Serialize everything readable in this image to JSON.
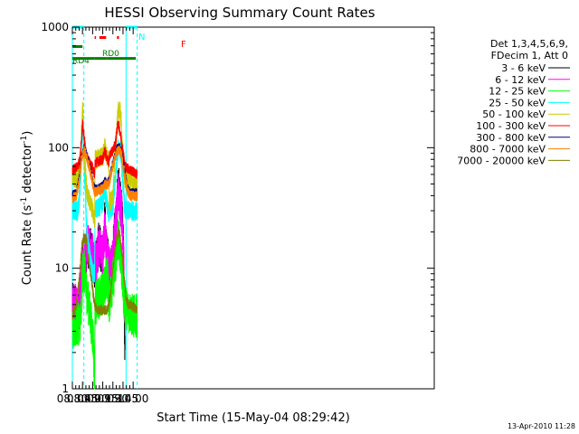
{
  "chart_data": {
    "type": "line",
    "title": "HESSI Observing Summary Count Rates",
    "xlabel": "Start Time (15-May-04 08:29:42)",
    "ylabel_main": "Count Rate (s",
    "ylabel_sup1": "-1",
    "ylabel_mid": " detector",
    "ylabel_sup2": "-1",
    "ylabel_end": ")",
    "yscale": "log",
    "xlim_min": [
      510,
      1046
    ],
    "ylim": [
      1,
      1000
    ],
    "xticks": [
      {
        "min": 510,
        "label": "08:30"
      },
      {
        "min": 525,
        "label": "08:45"
      },
      {
        "min": 540,
        "label": "09:00"
      },
      {
        "min": 555,
        "label": "09:15"
      },
      {
        "min": 570,
        "label": "09:30"
      },
      {
        "min": 585,
        "label": "09:45"
      },
      {
        "min": 600,
        "label": "10:00"
      }
    ],
    "yticks": [
      {
        "value": 1,
        "label": "1"
      },
      {
        "value": 10,
        "label": "10"
      },
      {
        "value": 100,
        "label": "100"
      },
      {
        "value": 1000,
        "label": "1000"
      }
    ],
    "legend_header": [
      "Det 1,3,4,5,6,9,",
      "FDecim 1, Att 0"
    ],
    "legend_position": "right",
    "timestamp": "13-Apr-2010 11:28",
    "flag_labels": {
      "N": "N",
      "F": "F",
      "RD0": "RD0",
      "RD4": "RD4"
    },
    "flags": {
      "N": {
        "color": "#00ffff",
        "y": 1000,
        "intervals": [
          [
            510,
            527
          ],
          [
            589.5,
            606
          ]
        ]
      },
      "F": {
        "color": "#ff0000",
        "y": 820,
        "intervals": [
          [
            543,
            545
          ],
          [
            550,
            560
          ],
          [
            576,
            579
          ]
        ]
      },
      "RD0": {
        "color": "#008000",
        "y": 690,
        "intervals": [
          [
            507.5,
            525
          ]
        ]
      },
      "RD4": {
        "color": "#008000",
        "y": 550,
        "intervals": [
          [
            507.5,
            543
          ],
          [
            543,
            562
          ],
          [
            562,
            587
          ],
          [
            587,
            604
          ]
        ]
      }
    },
    "night_boundaries": [
      510,
      527,
      589.5,
      606
    ],
    "series": [
      {
        "name": "3 - 6 keV",
        "color": "#000000",
        "points": [
          [
            510,
            5
          ],
          [
            520,
            4.5
          ],
          [
            523,
            7
          ],
          [
            525,
            13
          ],
          [
            527,
            9
          ],
          [
            532,
            15
          ],
          [
            538,
            14
          ],
          [
            541,
            12
          ],
          [
            543,
            10
          ],
          [
            546,
            12
          ],
          [
            549,
            16
          ],
          [
            552,
            14
          ],
          [
            555,
            13
          ],
          [
            558,
            25
          ],
          [
            561,
            13
          ],
          [
            564,
            11
          ],
          [
            566,
            9
          ],
          [
            570,
            12
          ],
          [
            572,
            20
          ],
          [
            576,
            30
          ],
          [
            578,
            55
          ],
          [
            580,
            38
          ],
          [
            582,
            32
          ],
          [
            584,
            25
          ],
          [
            586,
            12
          ],
          [
            587,
            4
          ],
          [
            588,
            1.5
          ]
        ],
        "gap": [
          [
            541,
            543
          ],
          [
            562,
            566
          ]
        ]
      },
      {
        "name": "6 - 12 keV",
        "color": "#ff00ff",
        "points": [
          [
            510,
            5
          ],
          [
            520,
            5
          ],
          [
            523,
            7
          ],
          [
            525,
            13
          ],
          [
            527,
            10
          ],
          [
            532,
            16
          ],
          [
            538,
            14
          ],
          [
            541,
            12
          ],
          [
            543,
            10
          ],
          [
            546,
            12
          ],
          [
            549,
            16
          ],
          [
            552,
            14
          ],
          [
            555,
            13
          ],
          [
            558,
            22
          ],
          [
            561,
            13
          ],
          [
            564,
            11
          ],
          [
            566,
            9
          ],
          [
            570,
            12
          ],
          [
            573,
            22
          ],
          [
            576,
            30
          ],
          [
            578,
            45
          ],
          [
            580,
            38
          ],
          [
            582,
            33
          ],
          [
            584,
            25
          ],
          [
            586,
            12
          ],
          [
            587,
            5
          ]
        ]
      },
      {
        "name": "12 - 25 keV",
        "color": "#00ff00",
        "points": [
          [
            510,
            3
          ],
          [
            520,
            3.5
          ],
          [
            523,
            4
          ],
          [
            525,
            9
          ],
          [
            527,
            10
          ],
          [
            530,
            7
          ],
          [
            534,
            5
          ],
          [
            538,
            3.5
          ],
          [
            541,
            2.5
          ],
          [
            543,
            1
          ],
          [
            543.5,
            5
          ],
          [
            548,
            5.5
          ],
          [
            553,
            6
          ],
          [
            558,
            7
          ],
          [
            562,
            9
          ],
          [
            564,
            5
          ],
          [
            568,
            7
          ],
          [
            572,
            9
          ],
          [
            576,
            14
          ],
          [
            578,
            18
          ],
          [
            580,
            15
          ],
          [
            582,
            12
          ],
          [
            584,
            8
          ],
          [
            586,
            6
          ],
          [
            588,
            5
          ],
          [
            592,
            4.5
          ],
          [
            600,
            4
          ],
          [
            606,
            4
          ]
        ]
      },
      {
        "name": "25 - 50 keV",
        "color": "#00ffff",
        "points": [
          [
            510,
            30
          ],
          [
            518,
            30
          ],
          [
            521,
            40
          ],
          [
            524,
            100
          ],
          [
            525,
            150
          ],
          [
            526,
            110
          ],
          [
            528,
            60
          ],
          [
            532,
            18
          ],
          [
            536,
            12
          ],
          [
            540,
            9
          ],
          [
            543,
            9
          ],
          [
            543.5,
            30
          ],
          [
            550,
            32
          ],
          [
            555,
            35
          ],
          [
            558,
            45
          ],
          [
            561,
            35
          ],
          [
            564,
            28
          ],
          [
            564.5,
            30
          ],
          [
            570,
            32
          ],
          [
            573,
            50
          ],
          [
            576,
            80
          ],
          [
            578,
            100
          ],
          [
            580,
            100
          ],
          [
            582,
            90
          ],
          [
            584,
            60
          ],
          [
            586,
            40
          ],
          [
            588,
            30
          ],
          [
            596,
            30
          ],
          [
            606,
            30
          ]
        ]
      },
      {
        "name": "50 - 100 keV",
        "color": "#cccc00",
        "points": [
          [
            510,
            55
          ],
          [
            518,
            55
          ],
          [
            521,
            65
          ],
          [
            524,
            150
          ],
          [
            525,
            215
          ],
          [
            526,
            170
          ],
          [
            528,
            80
          ],
          [
            532,
            40
          ],
          [
            536,
            35
          ],
          [
            540,
            30
          ],
          [
            543,
            25
          ],
          [
            543.5,
            80
          ],
          [
            550,
            82
          ],
          [
            555,
            85
          ],
          [
            558,
            100
          ],
          [
            561,
            85
          ],
          [
            564,
            75
          ],
          [
            564.5,
            35
          ],
          [
            570,
            38
          ],
          [
            573,
            90
          ],
          [
            576,
            150
          ],
          [
            578,
            200
          ],
          [
            580,
            210
          ],
          [
            582,
            170
          ],
          [
            584,
            100
          ],
          [
            586,
            60
          ],
          [
            588,
            55
          ],
          [
            596,
            52
          ],
          [
            606,
            50
          ]
        ]
      },
      {
        "name": "100 - 300 keV",
        "color": "#ff0000",
        "points": [
          [
            510,
            65
          ],
          [
            518,
            70
          ],
          [
            521,
            80
          ],
          [
            524,
            130
          ],
          [
            525,
            160
          ],
          [
            527,
            130
          ],
          [
            530,
            90
          ],
          [
            535,
            75
          ],
          [
            540,
            68
          ],
          [
            543,
            60
          ],
          [
            543.5,
            75
          ],
          [
            550,
            78
          ],
          [
            555,
            80
          ],
          [
            558,
            95
          ],
          [
            561,
            82
          ],
          [
            564,
            75
          ],
          [
            564.5,
            85
          ],
          [
            570,
            95
          ],
          [
            574,
            110
          ],
          [
            576,
            140
          ],
          [
            578,
            160
          ],
          [
            580,
            140
          ],
          [
            583,
            110
          ],
          [
            586,
            85
          ],
          [
            588,
            70
          ],
          [
            596,
            65
          ],
          [
            606,
            60
          ]
        ]
      },
      {
        "name": "300 - 800 keV",
        "color": "#000080",
        "points": [
          [
            510,
            40
          ],
          [
            516,
            42
          ],
          [
            520,
            55
          ],
          [
            524,
            85
          ],
          [
            527,
            98
          ],
          [
            530,
            90
          ],
          [
            534,
            75
          ],
          [
            538,
            60
          ],
          [
            541,
            50
          ],
          [
            543,
            45
          ],
          [
            546,
            45
          ],
          [
            550,
            46
          ],
          [
            555,
            48
          ],
          [
            558,
            52
          ],
          [
            562,
            50
          ],
          [
            565,
            55
          ],
          [
            569,
            70
          ],
          [
            573,
            85
          ],
          [
            577,
            100
          ],
          [
            580,
            100
          ],
          [
            583,
            90
          ],
          [
            586,
            70
          ],
          [
            589,
            55
          ],
          [
            592,
            45
          ],
          [
            596,
            42
          ],
          [
            606,
            42
          ]
        ]
      },
      {
        "name": "800 - 7000 keV",
        "color": "#ff8000",
        "points": [
          [
            510,
            38
          ],
          [
            516,
            40
          ],
          [
            520,
            52
          ],
          [
            524,
            82
          ],
          [
            527,
            95
          ],
          [
            530,
            88
          ],
          [
            534,
            72
          ],
          [
            538,
            58
          ],
          [
            541,
            48
          ],
          [
            543,
            43
          ],
          [
            546,
            43
          ],
          [
            550,
            44
          ],
          [
            555,
            46
          ],
          [
            558,
            50
          ],
          [
            562,
            48
          ],
          [
            565,
            52
          ],
          [
            569,
            68
          ],
          [
            573,
            82
          ],
          [
            577,
            95
          ],
          [
            580,
            95
          ],
          [
            583,
            85
          ],
          [
            586,
            66
          ],
          [
            589,
            52
          ],
          [
            592,
            43
          ],
          [
            596,
            40
          ],
          [
            606,
            40
          ]
        ]
      },
      {
        "name": "7000 - 20000 keV",
        "color": "#808000",
        "points": [
          [
            510,
            4
          ],
          [
            516,
            5
          ],
          [
            520,
            8
          ],
          [
            524,
            15
          ],
          [
            527,
            18
          ],
          [
            531,
            17
          ],
          [
            534,
            12
          ],
          [
            538,
            8
          ],
          [
            541,
            6
          ],
          [
            543,
            5
          ],
          [
            546,
            4.5
          ],
          [
            552,
            4.5
          ],
          [
            558,
            4.5
          ],
          [
            562,
            4.5
          ],
          [
            566,
            6
          ],
          [
            570,
            10
          ],
          [
            574,
            16
          ],
          [
            578,
            20
          ],
          [
            580,
            19
          ],
          [
            583,
            14
          ],
          [
            586,
            9
          ],
          [
            589,
            6
          ],
          [
            592,
            5
          ],
          [
            596,
            5
          ],
          [
            606,
            4.5
          ]
        ]
      }
    ]
  }
}
